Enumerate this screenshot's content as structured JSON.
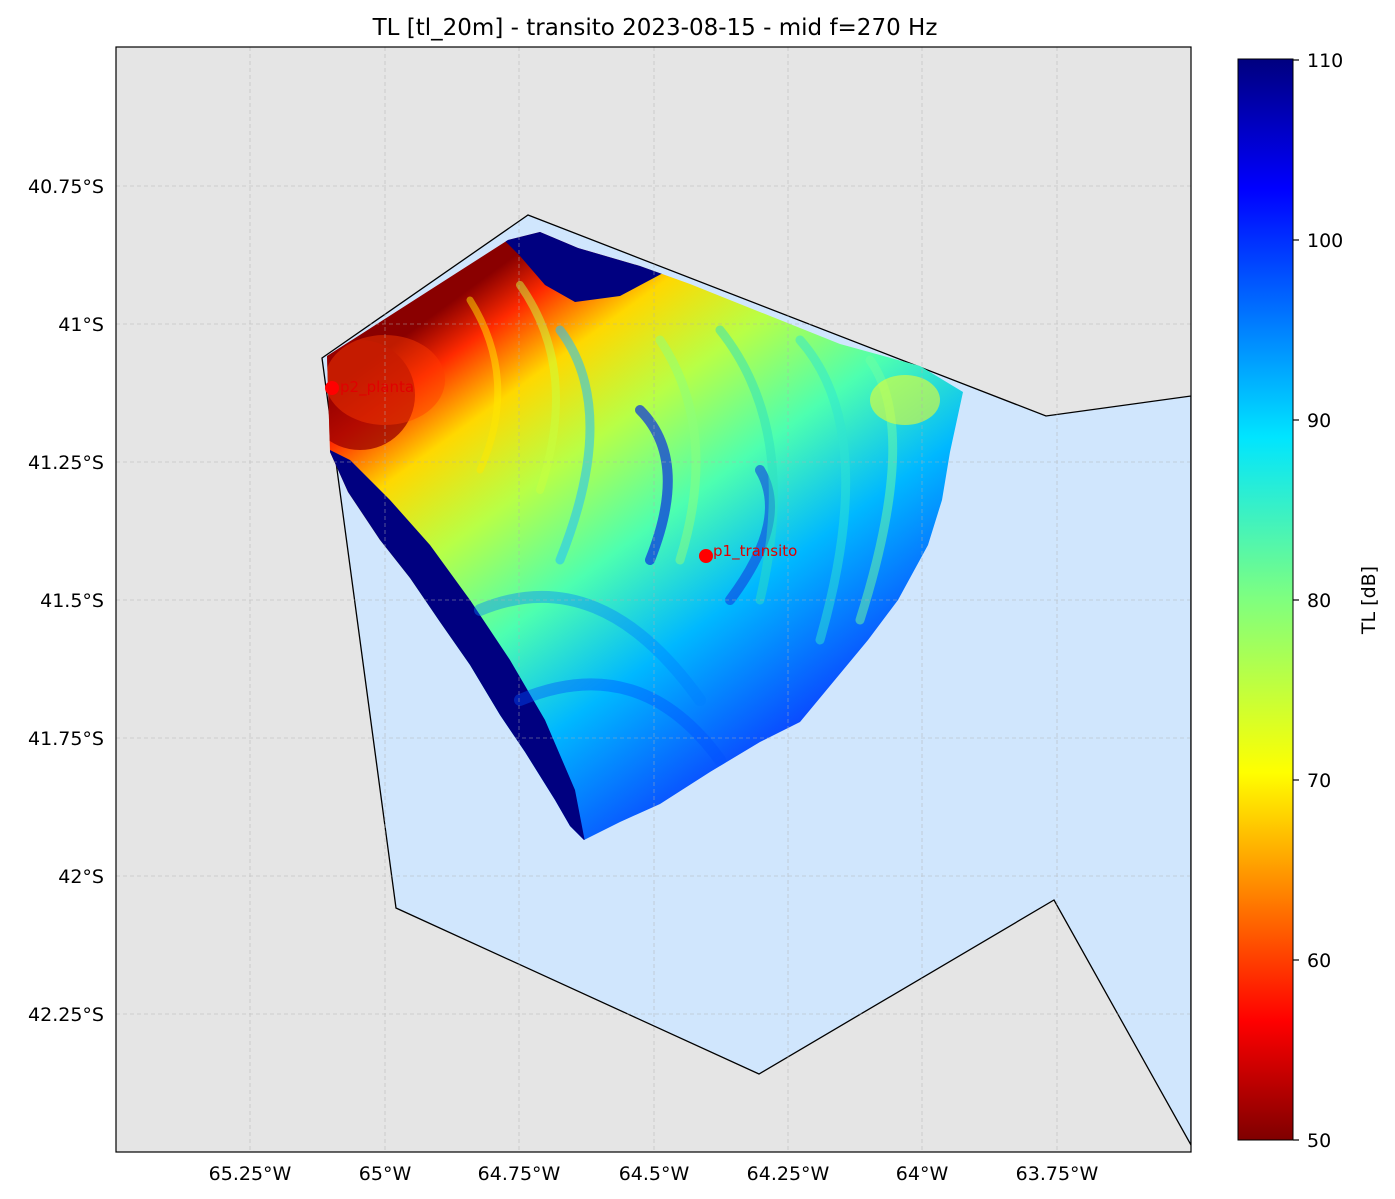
{
  "title": "TL [tl_20m] - transito 2023-08-15 - mid f=270 Hz",
  "map": {
    "x_ticks": [
      "65.25°W",
      "65°W",
      "64.75°W",
      "64.5°W",
      "64.25°W",
      "64°W",
      "63.75°W"
    ],
    "y_ticks": [
      "40.75°S",
      "41°S",
      "41.25°S",
      "41.5°S",
      "41.75°S",
      "42°S",
      "42.25°S"
    ],
    "land_color": "#e5e5e5",
    "water_color": "#d0e6fd",
    "grid": true
  },
  "points": [
    {
      "label": "p2_planta",
      "color": "#ff0000"
    },
    {
      "label": "p1_transito",
      "color": "#ff0000"
    }
  ],
  "colorbar": {
    "label": "TL [dB]",
    "colormap": "jet_r",
    "min": 50,
    "max": 110,
    "ticks": [
      "110",
      "100",
      "90",
      "80",
      "70",
      "60",
      "50"
    ]
  }
}
